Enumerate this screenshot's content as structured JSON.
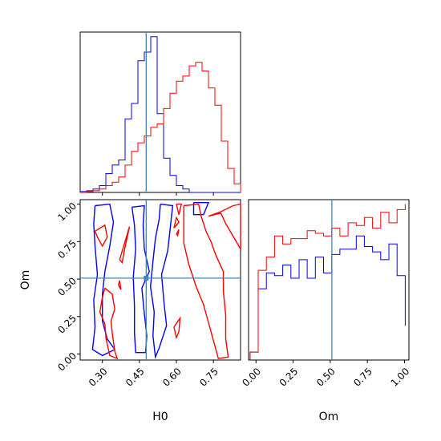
{
  "chart_data": {
    "type": "corner",
    "colors": {
      "series_a": "#0000ff",
      "series_b": "#ff0000",
      "truth": "#4682b4"
    },
    "parameters": [
      "H0",
      "Om"
    ],
    "truth": {
      "H0": 0.45,
      "Om": 0.51
    },
    "panels": [
      {
        "id": "hist-H0",
        "type": "histogram",
        "xlim": [
          0.21,
          0.86
        ],
        "bin_edges": [
          0.21,
          0.236,
          0.262,
          0.288,
          0.314,
          0.34,
          0.366,
          0.392,
          0.418,
          0.444,
          0.47,
          0.496,
          0.522,
          0.548,
          0.574,
          0.6,
          0.626,
          0.652,
          0.678,
          0.704,
          0.73,
          0.756,
          0.782,
          0.808,
          0.834,
          0.86
        ],
        "series": [
          {
            "color": "blue",
            "counts": [
              0.5,
              1,
              2,
              4,
              11,
              16,
              19,
              43,
              52,
              77,
              82,
              91,
              46,
              20,
              10,
              4,
              2,
              0,
              0,
              0,
              0,
              0,
              0,
              0,
              0
            ]
          },
          {
            "color": "red",
            "counts": [
              0,
              0.5,
              1,
              2,
              4,
              6,
              9,
              16,
              24,
              29,
              33,
              38,
              40,
              49,
              58,
              65,
              68,
              74,
              76,
              71,
              61,
              51,
              30,
              14,
              5
            ]
          }
        ]
      },
      {
        "id": "hist-Om",
        "type": "histogram",
        "xlim": [
          -0.05,
          1.03
        ],
        "bin_edges": [
          -0.04,
          0.015,
          0.07,
          0.125,
          0.18,
          0.235,
          0.29,
          0.345,
          0.4,
          0.455,
          0.51,
          0.565,
          0.62,
          0.675,
          0.73,
          0.785,
          0.84,
          0.895,
          0.95,
          1.005
        ],
        "series": [
          {
            "color": "blue",
            "counts": [
              3,
              27,
              33,
              32,
              36,
              31,
              38,
              31,
              39,
              33,
              40,
              42,
              42,
              47,
              43,
              41,
              38,
              44,
              32,
              13
            ]
          },
          {
            "color": "red",
            "counts": [
              3,
              34,
              39,
              47,
              44,
              46,
              46,
              49,
              48,
              47,
              50,
              47,
              52,
              51,
              54,
              50,
              56,
              52,
              57,
              59
            ]
          }
        ]
      },
      {
        "id": "contour-H0-Om",
        "type": "contour",
        "xlim": [
          0.21,
          0.86
        ],
        "ylim": [
          -0.04,
          1.03
        ],
        "series": [
          {
            "color": "blue",
            "contours": [
              [
                [
                  0.27,
                  0.99
                ],
                [
                  0.33,
                  1.0
                ],
                [
                  0.345,
                  0.88
                ],
                [
                  0.33,
                  0.72
                ],
                [
                  0.31,
                  0.55
                ],
                [
                  0.3,
                  0.4
                ],
                [
                  0.3,
                  0.22
                ],
                [
                  0.32,
                  0.1
                ],
                [
                  0.35,
                  0.03
                ],
                [
                  0.3,
                  -0.01
                ],
                [
                  0.26,
                  0.03
                ],
                [
                  0.27,
                  0.18
                ],
                [
                  0.265,
                  0.36
                ],
                [
                  0.28,
                  0.53
                ],
                [
                  0.27,
                  0.72
                ],
                [
                  0.265,
                  0.87
                ],
                [
                  0.27,
                  0.99
                ]
              ],
              [
                [
                  0.42,
                  0.98
                ],
                [
                  0.47,
                  0.99
                ],
                [
                  0.465,
                  0.86
                ],
                [
                  0.47,
                  0.7
                ],
                [
                  0.49,
                  0.55
                ],
                [
                  0.46,
                  0.44
                ],
                [
                  0.47,
                  0.27
                ],
                [
                  0.48,
                  0.12
                ],
                [
                  0.475,
                  0.01
                ],
                [
                  0.435,
                  0.01
                ],
                [
                  0.43,
                  0.14
                ],
                [
                  0.43,
                  0.32
                ],
                [
                  0.425,
                  0.51
                ],
                [
                  0.435,
                  0.7
                ],
                [
                  0.43,
                  0.86
                ],
                [
                  0.42,
                  0.98
                ]
              ],
              [
                [
                  0.535,
                  1.0
                ],
                [
                  0.585,
                  0.99
                ],
                [
                  0.575,
                  0.84
                ],
                [
                  0.565,
                  0.69
                ],
                [
                  0.54,
                  0.53
                ],
                [
                  0.55,
                  0.34
                ],
                [
                  0.56,
                  0.19
                ],
                [
                  0.53,
                  0.04
                ],
                [
                  0.515,
                  -0.02
                ],
                [
                  0.505,
                  0.12
                ],
                [
                  0.51,
                  0.28
                ],
                [
                  0.495,
                  0.45
                ],
                [
                  0.505,
                  0.62
                ],
                [
                  0.515,
                  0.77
                ],
                [
                  0.53,
                  0.9
                ],
                [
                  0.535,
                  1.0
                ]
              ],
              [
                [
                  0.67,
                  1.01
                ],
                [
                  0.73,
                  1.01
                ],
                [
                  0.71,
                  0.93
                ],
                [
                  0.67,
                  0.93
                ],
                [
                  0.67,
                  1.01
                ]
              ]
            ]
          },
          {
            "color": "red",
            "contours": [
              [
                [
                  0.27,
                  0.82
                ],
                [
                  0.31,
                  0.86
                ],
                [
                  0.32,
                  0.78
                ],
                [
                  0.3,
                  0.72
                ],
                [
                  0.28,
                  0.78
                ],
                [
                  0.27,
                  0.82
                ]
              ],
              [
                [
                  0.31,
                  0.44
                ],
                [
                  0.34,
                  0.4
                ],
                [
                  0.35,
                  0.3
                ],
                [
                  0.335,
                  0.22
                ],
                [
                  0.34,
                  0.14
                ],
                [
                  0.35,
                  0.02
                ],
                [
                  0.36,
                  -0.03
                ],
                [
                  0.33,
                  -0.01
                ],
                [
                  0.315,
                  0.1
                ],
                [
                  0.31,
                  0.2
                ],
                [
                  0.29,
                  0.28
                ],
                [
                  0.3,
                  0.38
                ],
                [
                  0.31,
                  0.44
                ]
              ],
              [
                [
                  0.37,
                  0.63
                ],
                [
                  0.41,
                  0.85
                ],
                [
                  0.39,
                  0.7
                ],
                [
                  0.38,
                  0.61
                ],
                [
                  0.37,
                  0.63
                ]
              ],
              [
                [
                  0.365,
                  0.46
                ],
                [
                  0.375,
                  0.43
                ],
                [
                  0.37,
                  0.49
                ],
                [
                  0.365,
                  0.46
                ]
              ],
              [
                [
                  0.6,
                  1.0
                ],
                [
                  0.62,
                  1.0
                ],
                [
                  0.61,
                  0.93
                ],
                [
                  0.6,
                  1.0
                ]
              ],
              [
                [
                  0.63,
                  0.99
                ],
                [
                  0.69,
                  1.0
                ],
                [
                  0.7,
                  0.92
                ],
                [
                  0.72,
                  0.82
                ],
                [
                  0.74,
                  0.75
                ],
                [
                  0.76,
                  0.66
                ],
                [
                  0.79,
                  0.55
                ],
                [
                  0.79,
                  0.42
                ],
                [
                  0.8,
                  0.26
                ],
                [
                  0.8,
                  0.1
                ],
                [
                  0.81,
                  -0.02
                ],
                [
                  0.77,
                  -0.03
                ],
                [
                  0.74,
                  0.15
                ],
                [
                  0.71,
                  0.33
                ],
                [
                  0.68,
                  0.45
                ],
                [
                  0.65,
                  0.6
                ],
                [
                  0.63,
                  0.74
                ],
                [
                  0.63,
                  0.87
                ],
                [
                  0.63,
                  0.99
                ]
              ],
              [
                [
                  0.73,
                  0.92
                ],
                [
                  0.78,
                  0.94
                ],
                [
                  0.8,
                  0.87
                ],
                [
                  0.85,
                  0.73
                ],
                [
                  0.86,
                  0.7
                ],
                [
                  0.86,
                  1.0
                ],
                [
                  0.83,
                  0.99
                ],
                [
                  0.78,
                  0.95
                ],
                [
                  0.73,
                  0.92
                ]
              ],
              [
                [
                  0.59,
                  0.84
                ],
                [
                  0.61,
                  0.88
                ],
                [
                  0.6,
                  0.91
                ],
                [
                  0.59,
                  0.84
                ]
              ],
              [
                [
                  0.59,
                  0.18
                ],
                [
                  0.615,
                  0.24
                ],
                [
                  0.61,
                  0.15
                ],
                [
                  0.6,
                  0.11
                ],
                [
                  0.59,
                  0.18
                ]
              ],
              [
                [
                  0.6,
                  0.8
                ],
                [
                  0.61,
                  0.83
                ],
                [
                  0.605,
                  0.79
                ],
                [
                  0.6,
                  0.8
                ]
              ]
            ]
          }
        ]
      }
    ],
    "axes": {
      "H0": {
        "ticks": [
          0.3,
          0.45,
          0.6,
          0.75
        ],
        "tick_labels": [
          "0.30",
          "0.45",
          "0.60",
          "0.75"
        ],
        "label": "H0"
      },
      "Om": {
        "ticks": [
          0.0,
          0.25,
          0.5,
          0.75,
          1.0
        ],
        "tick_labels": [
          "0.00",
          "0.25",
          "0.50",
          "0.75",
          "1.00"
        ],
        "label": "Om"
      }
    },
    "grid": false
  }
}
